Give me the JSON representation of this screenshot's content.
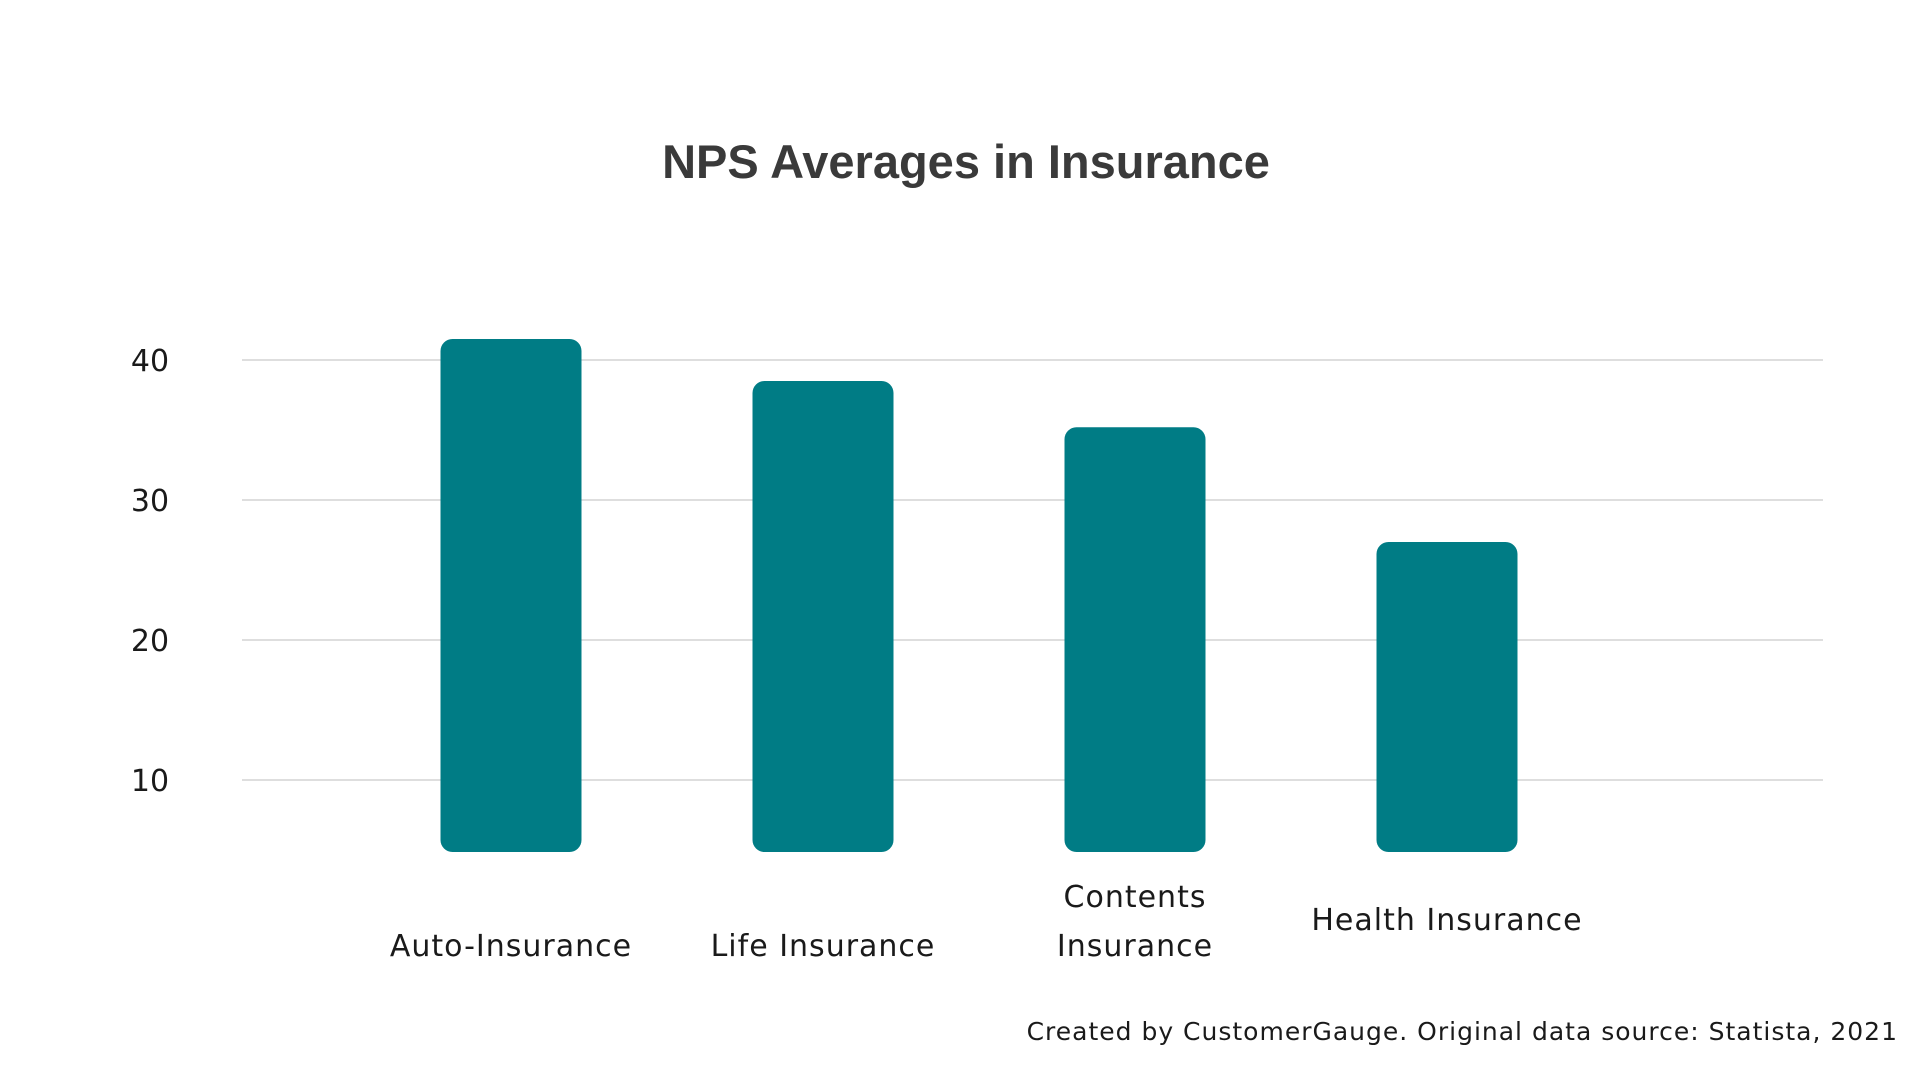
{
  "chart_data": {
    "type": "bar",
    "title": "NPS Averages in Insurance",
    "xlabel": "",
    "ylabel": "",
    "categories": [
      [
        "Auto-Insurance"
      ],
      [
        "Life Insurance"
      ],
      [
        "Contents",
        "Insurance"
      ],
      [
        "Health Insurance"
      ]
    ],
    "values": [
      41.5,
      38.5,
      35.2,
      27.0
    ],
    "ylim": [
      5,
      42
    ],
    "yticks": [
      "10",
      "20",
      "30",
      "40"
    ],
    "grid": true,
    "bar_color": "#007c85"
  },
  "footer": {
    "source": "Created by CustomerGauge. Original data source: Statista, 2021"
  }
}
